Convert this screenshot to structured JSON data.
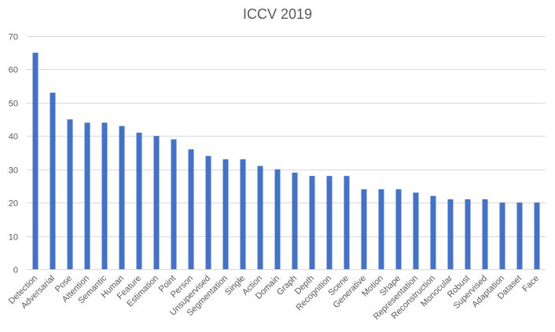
{
  "chart_data": {
    "type": "bar",
    "title": "ICCV 2019",
    "xlabel": "",
    "ylabel": "",
    "ylim": [
      0,
      70
    ],
    "yticks": [
      0,
      10,
      20,
      30,
      40,
      50,
      60,
      70
    ],
    "grid": true,
    "legend": "none",
    "bar_color": "#4472C4",
    "grid_color": "#D9D9D9",
    "text_color": "#595959",
    "categories": [
      "Detection",
      "Adversarial",
      "Pose",
      "Attention",
      "Semantic",
      "Human",
      "Feature",
      "Estimation",
      "Point",
      "Person",
      "Unsupervised",
      "Segmentation",
      "Single",
      "Action",
      "Domain",
      "Graph",
      "Depth",
      "Recognition",
      "Scene",
      "Generative",
      "Motion",
      "Shape",
      "Representation",
      "Reconstruction",
      "Monocular",
      "Robust",
      "Supervised",
      "Adaptation",
      "Dataset",
      "Face"
    ],
    "values": [
      65,
      53,
      45,
      44,
      44,
      43,
      41,
      40,
      39,
      36,
      34,
      33,
      33,
      31,
      30,
      29,
      28,
      28,
      28,
      24,
      24,
      24,
      23,
      22,
      21,
      21,
      21,
      20,
      20,
      20
    ]
  }
}
